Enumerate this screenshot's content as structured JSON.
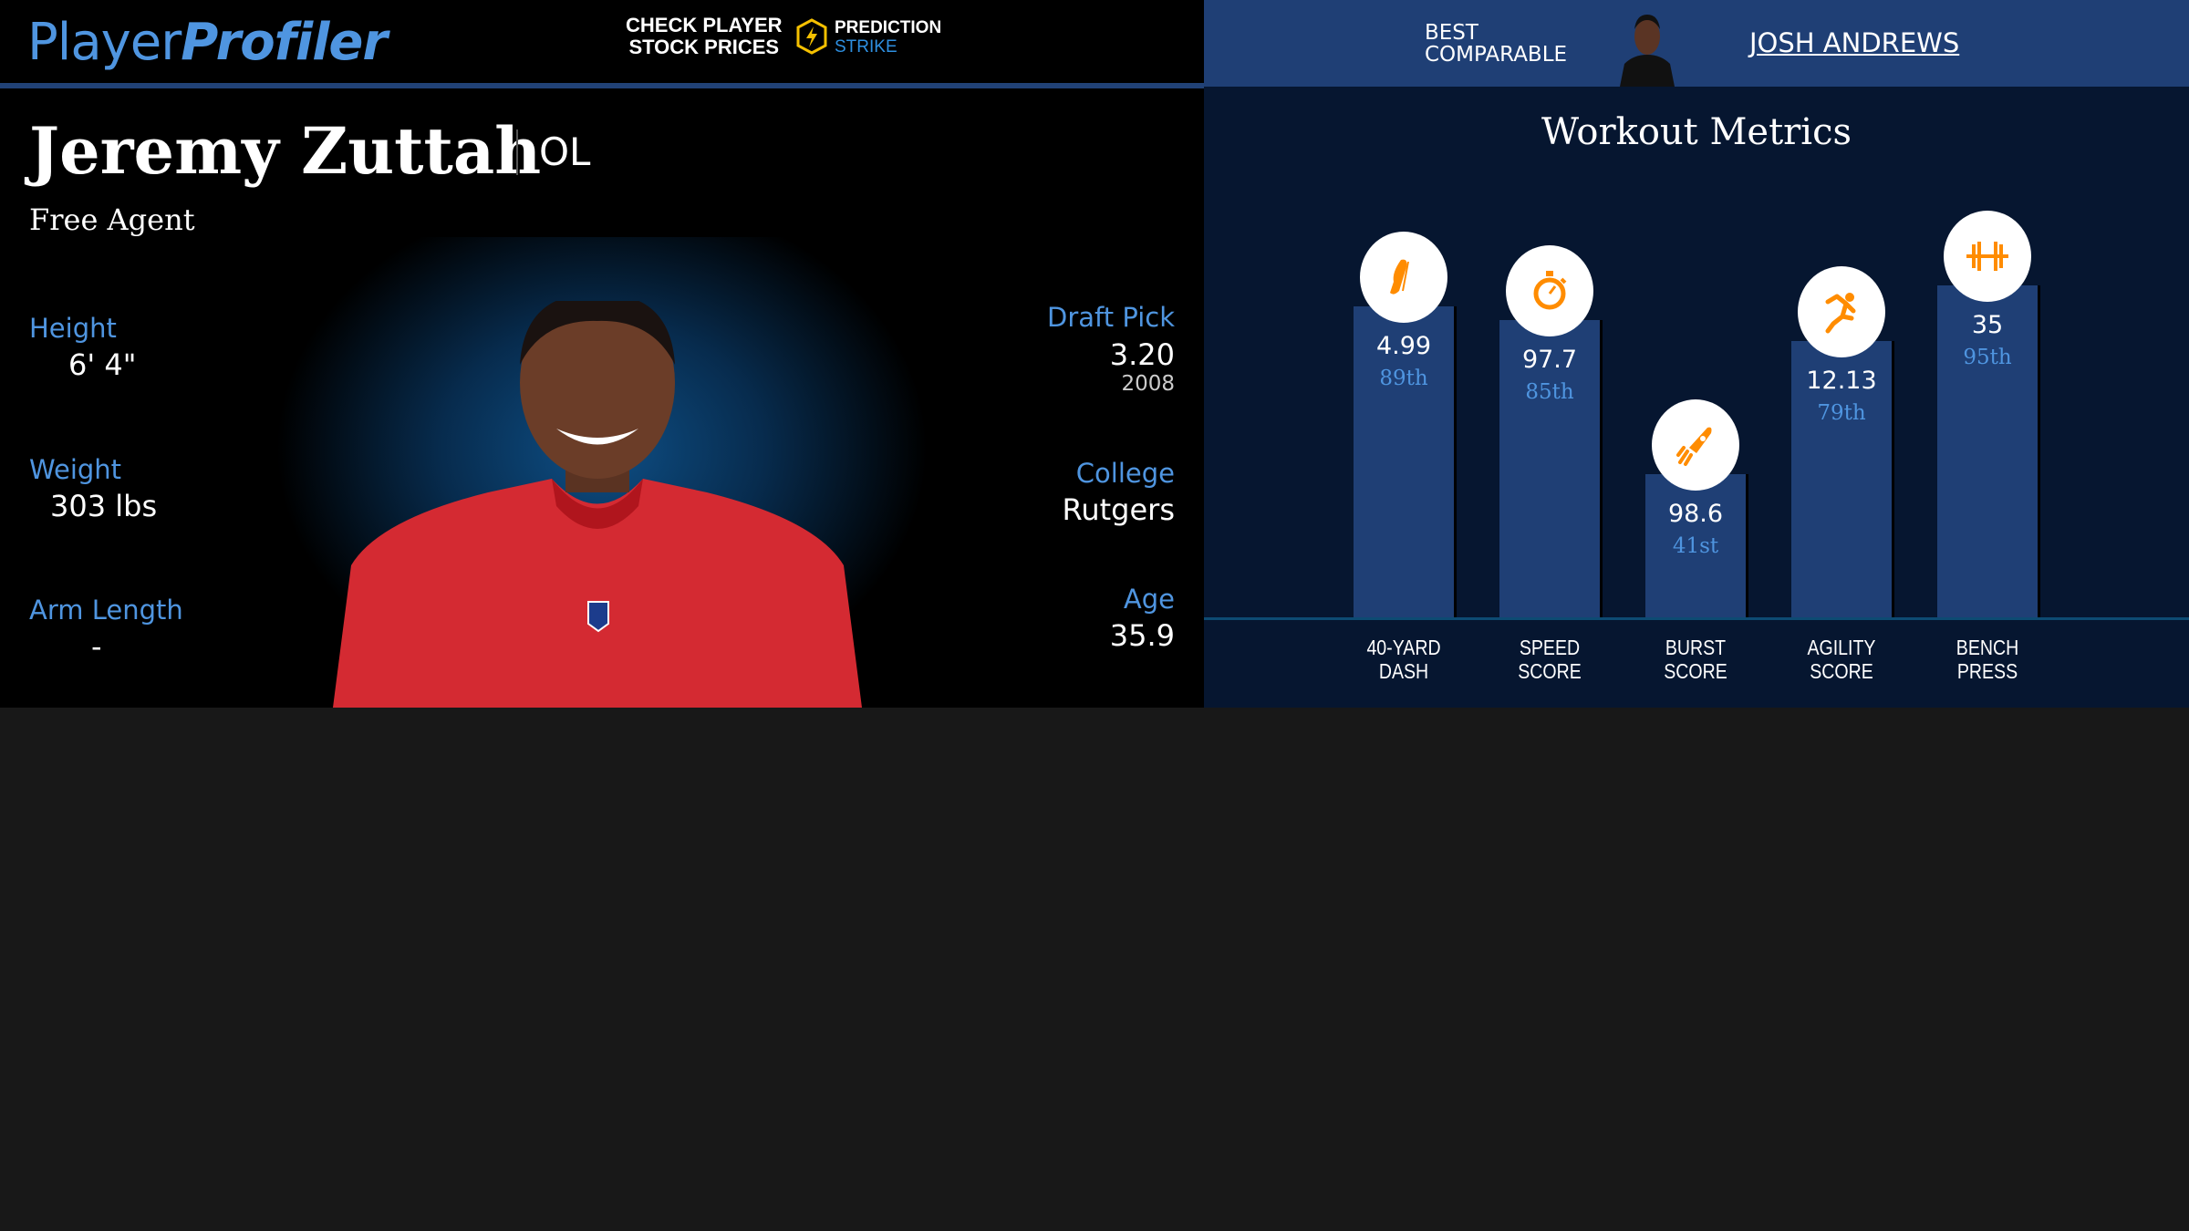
{
  "header": {
    "logo": {
      "player": "Player",
      "profiler": "Profiler"
    },
    "promo": {
      "line1": "CHECK PLAYER",
      "line2": "STOCK PRICES",
      "brand1": "PREDICTION",
      "brand2": "STRIKE"
    },
    "best_comparable": {
      "label1": "BEST",
      "label2": "COMPARABLE",
      "name": "JOSH ANDREWS"
    }
  },
  "player": {
    "name": "Jeremy Zuttah",
    "position": "OL",
    "team": "Free Agent",
    "height": {
      "label": "Height",
      "value": "6' 4\""
    },
    "weight": {
      "label": "Weight",
      "value": "303 lbs"
    },
    "arm_length": {
      "label": "Arm Length",
      "value": "-"
    },
    "draft_pick": {
      "label": "Draft Pick",
      "value": "3.20",
      "year": "2008"
    },
    "college": {
      "label": "College",
      "value": "Rutgers"
    },
    "age": {
      "label": "Age",
      "value": "35.9"
    }
  },
  "workout": {
    "title": "Workout Metrics",
    "accent": "#ff8c00",
    "bar_color": "#1f3f75",
    "metrics": [
      {
        "label1": "40-YARD",
        "label2": "DASH",
        "value": "4.99",
        "percentile_label": "89th",
        "percentile": 89,
        "icon": "shoe-icon"
      },
      {
        "label1": "SPEED",
        "label2": "SCORE",
        "value": "97.7",
        "percentile_label": "85th",
        "percentile": 85,
        "icon": "stopwatch-icon"
      },
      {
        "label1": "BURST",
        "label2": "SCORE",
        "value": "98.6",
        "percentile_label": "41st",
        "percentile": 41,
        "icon": "rocket-icon"
      },
      {
        "label1": "AGILITY",
        "label2": "SCORE",
        "value": "12.13",
        "percentile_label": "79th",
        "percentile": 79,
        "icon": "runner-icon"
      },
      {
        "label1": "BENCH",
        "label2": "PRESS",
        "value": "35",
        "percentile_label": "95th",
        "percentile": 95,
        "icon": "dumbbell-icon"
      }
    ]
  }
}
